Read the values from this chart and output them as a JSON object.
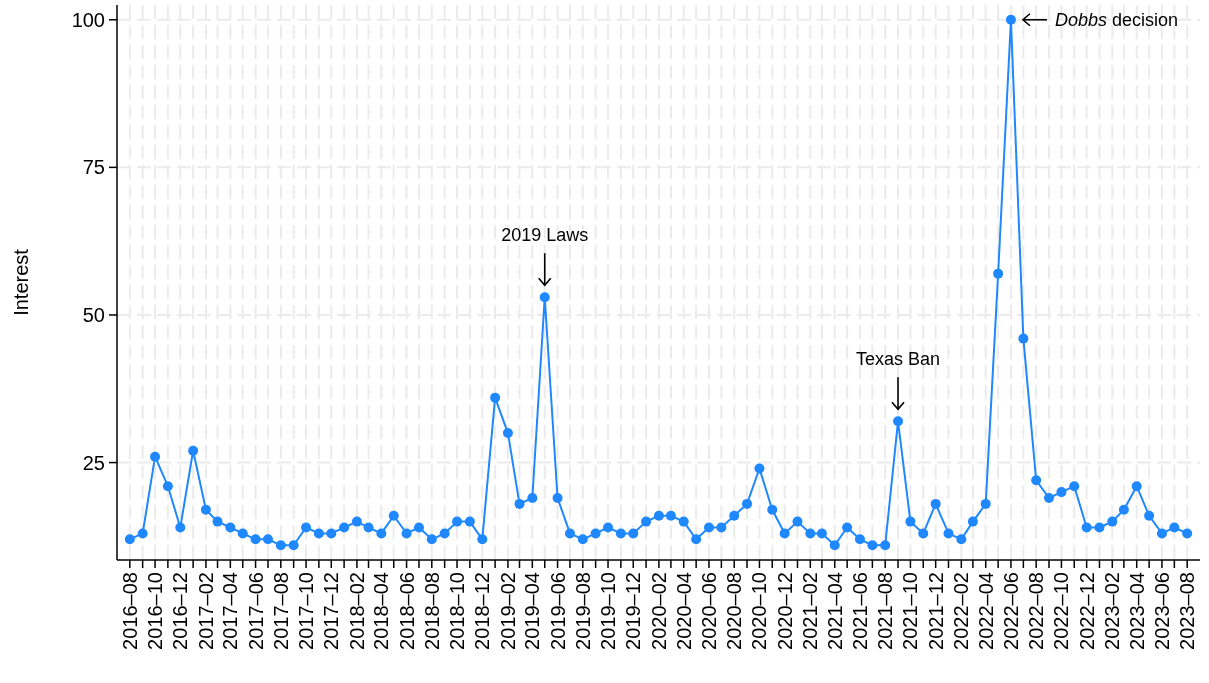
{
  "chart_data": {
    "type": "line",
    "ylabel": "Interest",
    "ylim": [
      8.5,
      102.5
    ],
    "yticks": [
      25,
      50,
      75,
      100
    ],
    "xlim": [
      "2016-07",
      "2023-09"
    ],
    "grid": true,
    "marker": "circle",
    "line_style": "solid",
    "xticks": [
      {
        "value": "2016-08",
        "label": "2016–08"
      },
      {
        "value": "2016-09",
        "label": null
      },
      {
        "value": "2016-10",
        "label": "2016–10"
      },
      {
        "value": "2016-11",
        "label": null
      },
      {
        "value": "2016-12",
        "label": "2016–12"
      },
      {
        "value": "2017-01",
        "label": null
      },
      {
        "value": "2017-02",
        "label": "2017–02"
      },
      {
        "value": "2017-03",
        "label": null
      },
      {
        "value": "2017-04",
        "label": "2017–04"
      },
      {
        "value": "2017-05",
        "label": null
      },
      {
        "value": "2017-06",
        "label": "2017–06"
      },
      {
        "value": "2017-07",
        "label": null
      },
      {
        "value": "2017-08",
        "label": "2017–08"
      },
      {
        "value": "2017-09",
        "label": null
      },
      {
        "value": "2017-10",
        "label": "2017–10"
      },
      {
        "value": "2017-11",
        "label": null
      },
      {
        "value": "2017-12",
        "label": "2017–12"
      },
      {
        "value": "2018-01",
        "label": null
      },
      {
        "value": "2018-02",
        "label": "2018–02"
      },
      {
        "value": "2018-03",
        "label": null
      },
      {
        "value": "2018-04",
        "label": "2018–04"
      },
      {
        "value": "2018-05",
        "label": null
      },
      {
        "value": "2018-06",
        "label": "2018–06"
      },
      {
        "value": "2018-07",
        "label": null
      },
      {
        "value": "2018-08",
        "label": "2018–08"
      },
      {
        "value": "2018-09",
        "label": null
      },
      {
        "value": "2018-10",
        "label": "2018–10"
      },
      {
        "value": "2018-11",
        "label": null
      },
      {
        "value": "2018-12",
        "label": "2018–12"
      },
      {
        "value": "2019-01",
        "label": null
      },
      {
        "value": "2019-02",
        "label": "2019–02"
      },
      {
        "value": "2019-03",
        "label": null
      },
      {
        "value": "2019-04",
        "label": "2019–04"
      },
      {
        "value": "2019-05",
        "label": null
      },
      {
        "value": "2019-06",
        "label": "2019–06"
      },
      {
        "value": "2019-07",
        "label": null
      },
      {
        "value": "2019-08",
        "label": "2019–08"
      },
      {
        "value": "2019-09",
        "label": null
      },
      {
        "value": "2019-10",
        "label": "2019–10"
      },
      {
        "value": "2019-11",
        "label": null
      },
      {
        "value": "2019-12",
        "label": "2019–12"
      },
      {
        "value": "2020-01",
        "label": null
      },
      {
        "value": "2020-02",
        "label": "2020–02"
      },
      {
        "value": "2020-03",
        "label": null
      },
      {
        "value": "2020-04",
        "label": "2020–04"
      },
      {
        "value": "2020-05",
        "label": null
      },
      {
        "value": "2020-06",
        "label": "2020–06"
      },
      {
        "value": "2020-07",
        "label": null
      },
      {
        "value": "2020-08",
        "label": "2020–08"
      },
      {
        "value": "2020-09",
        "label": null
      },
      {
        "value": "2020-10",
        "label": "2020–10"
      },
      {
        "value": "2020-11",
        "label": null
      },
      {
        "value": "2020-12",
        "label": "2020–12"
      },
      {
        "value": "2021-01",
        "label": null
      },
      {
        "value": "2021-02",
        "label": "2021–02"
      },
      {
        "value": "2021-03",
        "label": null
      },
      {
        "value": "2021-04",
        "label": "2021–04"
      },
      {
        "value": "2021-05",
        "label": null
      },
      {
        "value": "2021-06",
        "label": "2021–06"
      },
      {
        "value": "2021-07",
        "label": null
      },
      {
        "value": "2021-08",
        "label": "2021–08"
      },
      {
        "value": "2021-09",
        "label": null
      },
      {
        "value": "2021-10",
        "label": "2021–10"
      },
      {
        "value": "2021-11",
        "label": null
      },
      {
        "value": "2021-12",
        "label": "2021–12"
      },
      {
        "value": "2022-01",
        "label": null
      },
      {
        "value": "2022-02",
        "label": "2022–02"
      },
      {
        "value": "2022-03",
        "label": null
      },
      {
        "value": "2022-04",
        "label": "2022–04"
      },
      {
        "value": "2022-05",
        "label": null
      },
      {
        "value": "2022-06",
        "label": "2022–06"
      },
      {
        "value": "2022-07",
        "label": null
      },
      {
        "value": "2022-08",
        "label": "2022–08"
      },
      {
        "value": "2022-09",
        "label": null
      },
      {
        "value": "2022-10",
        "label": "2022–10"
      },
      {
        "value": "2022-11",
        "label": null
      },
      {
        "value": "2022-12",
        "label": "2022–12"
      },
      {
        "value": "2023-01",
        "label": null
      },
      {
        "value": "2023-02",
        "label": "2023–02"
      },
      {
        "value": "2023-03",
        "label": null
      },
      {
        "value": "2023-04",
        "label": "2023–04"
      },
      {
        "value": "2023-05",
        "label": null
      },
      {
        "value": "2023-06",
        "label": "2023–06"
      },
      {
        "value": "2023-07",
        "label": null
      },
      {
        "value": "2023-08",
        "label": "2023–08"
      }
    ],
    "x": [
      "2016-08",
      "2016-09",
      "2016-10",
      "2016-11",
      "2016-12",
      "2017-01",
      "2017-02",
      "2017-03",
      "2017-04",
      "2017-05",
      "2017-06",
      "2017-07",
      "2017-08",
      "2017-09",
      "2017-10",
      "2017-11",
      "2017-12",
      "2018-01",
      "2018-02",
      "2018-03",
      "2018-04",
      "2018-05",
      "2018-06",
      "2018-07",
      "2018-08",
      "2018-09",
      "2018-10",
      "2018-11",
      "2018-12",
      "2019-01",
      "2019-02",
      "2019-03",
      "2019-04",
      "2019-05",
      "2019-06",
      "2019-07",
      "2019-08",
      "2019-09",
      "2019-10",
      "2019-11",
      "2019-12",
      "2020-01",
      "2020-02",
      "2020-03",
      "2020-04",
      "2020-05",
      "2020-06",
      "2020-07",
      "2020-08",
      "2020-09",
      "2020-10",
      "2020-11",
      "2020-12",
      "2021-01",
      "2021-02",
      "2021-03",
      "2021-04",
      "2021-05",
      "2021-06",
      "2021-07",
      "2021-08",
      "2021-09",
      "2021-10",
      "2021-11",
      "2021-12",
      "2022-01",
      "2022-02",
      "2022-03",
      "2022-04",
      "2022-05",
      "2022-06",
      "2022-07",
      "2022-08",
      "2022-09",
      "2022-10",
      "2022-11",
      "2022-12",
      "2023-01",
      "2023-02",
      "2023-03",
      "2023-04",
      "2023-05",
      "2023-06",
      "2023-07",
      "2023-08"
    ],
    "series": [
      {
        "color": "#1f88fe",
        "values": [
          12,
          13,
          26,
          21,
          14,
          27,
          17,
          15,
          14,
          13,
          12,
          12,
          11,
          11,
          14,
          13,
          13,
          14,
          15,
          14,
          13,
          16,
          13,
          14,
          12,
          13,
          15,
          15,
          12,
          36,
          30,
          18,
          19,
          53,
          19,
          13,
          12,
          13,
          14,
          13,
          13,
          15,
          16,
          16,
          15,
          12,
          14,
          14,
          16,
          18,
          24,
          17,
          13,
          15,
          13,
          13,
          11,
          14,
          12,
          11,
          11,
          32,
          15,
          13,
          18,
          13,
          12,
          15,
          18,
          57,
          100,
          46,
          22,
          19,
          20,
          21,
          14,
          14,
          15,
          17,
          21,
          16,
          13,
          14,
          13
        ]
      }
    ],
    "annotations": [
      {
        "text": "2019 Laws",
        "x": "2019-05",
        "y": 53
      },
      {
        "text": "Texas Ban",
        "x": "2021-09",
        "y": 32
      },
      {
        "text": "Dobbs decision",
        "x": "2022-06",
        "y": 100
      }
    ]
  }
}
